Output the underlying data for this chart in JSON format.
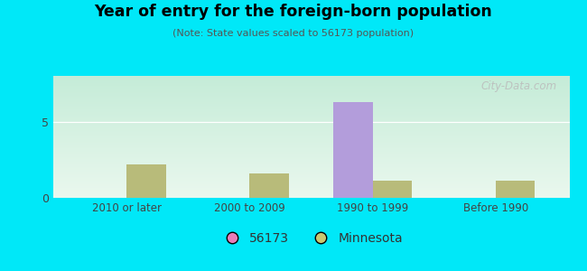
{
  "title": "Year of entry for the foreign-born population",
  "subtitle": "(Note: State values scaled to 56173 population)",
  "categories": [
    "2010 or later",
    "2000 to 2009",
    "1990 to 1999",
    "Before 1990"
  ],
  "values_56173": [
    0,
    0,
    6.3,
    0
  ],
  "values_minnesota": [
    2.2,
    1.6,
    1.1,
    1.1
  ],
  "color_56173": "#b39ddb",
  "color_minnesota": "#b8bb7a",
  "background_outer": "#00e8f8",
  "ylim": [
    0,
    8
  ],
  "yticks": [
    0,
    5
  ],
  "bar_width": 0.32,
  "legend_label_56173": "56173",
  "legend_label_minnesota": "Minnesota",
  "legend_color_56173": "#e87db8",
  "legend_color_minnesota": "#c8c870",
  "watermark": "City-Data.com"
}
